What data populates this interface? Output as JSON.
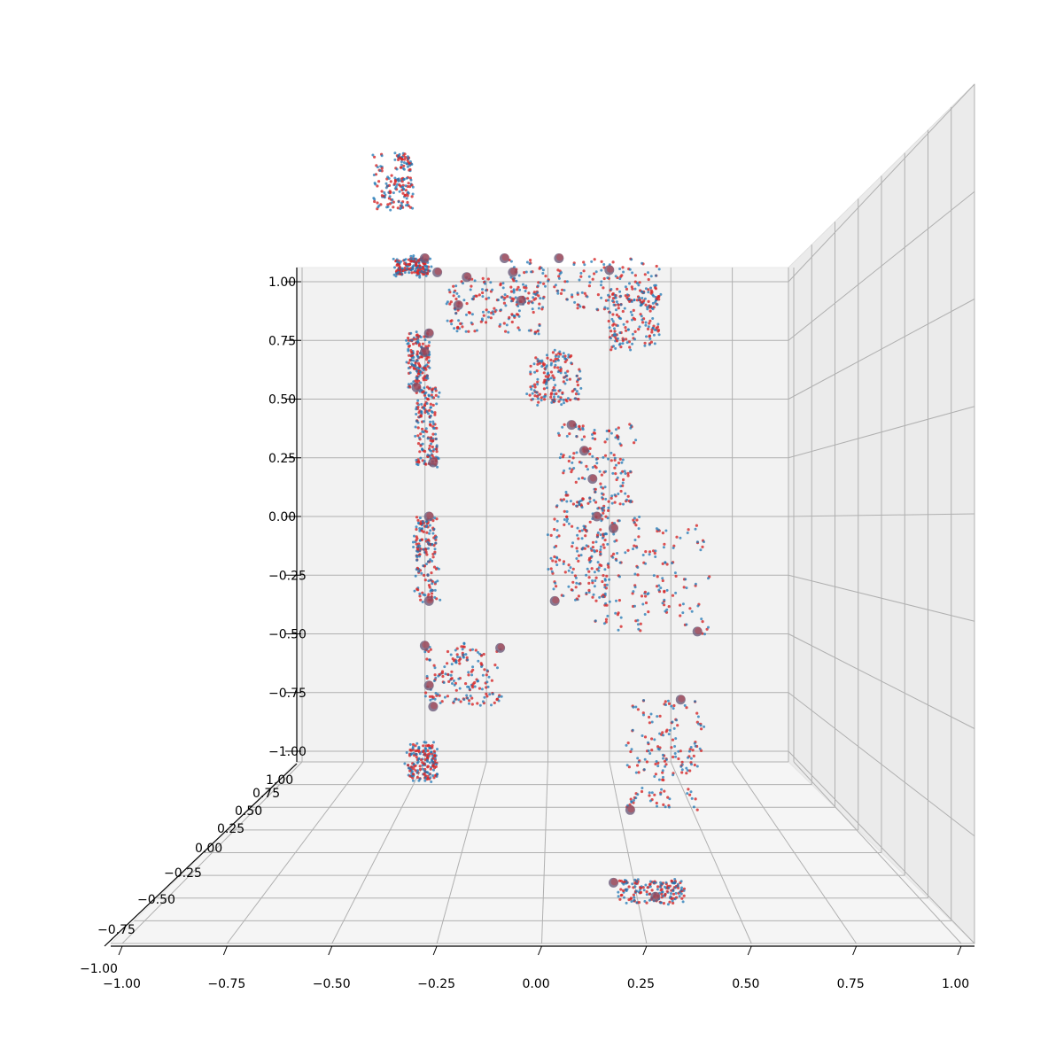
{
  "chart_data": {
    "type": "scatter",
    "title": "",
    "xlabel": "",
    "ylabel": "",
    "zlabel": "",
    "projection": "3d",
    "grid": true,
    "legend": "none",
    "xlim": [
      -1.0,
      1.0
    ],
    "ylim": [
      -1.0,
      1.0
    ],
    "zlim": [
      -1.0,
      1.0
    ],
    "x_ticks": [
      "−1.00",
      "−0.75",
      "−0.50",
      "−0.25",
      "0.00",
      "0.25",
      "0.50",
      "0.75",
      "1.00"
    ],
    "y_ticks": [
      "−1.00",
      "−0.75",
      "−0.50",
      "−0.25",
      "0.00",
      "0.25",
      "0.50",
      "0.75",
      "1.00"
    ],
    "z_ticks": [
      "−1.00",
      "−0.75",
      "−0.50",
      "−0.25",
      "0.00",
      "0.25",
      "0.50",
      "0.75",
      "1.00"
    ],
    "colors": {
      "series_a": "#d62728",
      "series_b": "#1f77b4",
      "joints": "#6b5b7b"
    },
    "series": [
      {
        "color": "#d62728",
        "marker_size": "small",
        "segments": [
          {
            "part": "head",
            "x": [
              -0.4,
              -0.31
            ],
            "z": [
              1.31,
              1.55
            ],
            "y": 0.0
          },
          {
            "part": "neck",
            "x": [
              -0.35,
              -0.27
            ],
            "z": [
              1.03,
              1.1
            ],
            "y": 0.0
          },
          {
            "part": "torso",
            "x": [
              -0.22,
              0.0
            ],
            "z": [
              0.78,
              1.02
            ],
            "y": 0.0
          },
          {
            "part": "upper-arm-left",
            "x": [
              -0.08,
              0.28
            ],
            "z": [
              0.88,
              1.1
            ],
            "y": 0.0
          },
          {
            "part": "forearm-left",
            "x": [
              0.15,
              0.28
            ],
            "z": [
              0.7,
              0.98
            ],
            "y": 0.0
          },
          {
            "part": "hand-left",
            "x": [
              -0.03,
              0.09
            ],
            "z": [
              0.48,
              0.7
            ],
            "y": 0.0
          },
          {
            "part": "upper-arm-right",
            "x": [
              -0.32,
              -0.27
            ],
            "z": [
              0.55,
              0.78
            ],
            "y": 0.0
          },
          {
            "part": "forearm-right",
            "x": [
              -0.3,
              -0.25
            ],
            "z": [
              0.22,
              0.55
            ],
            "y": 0.0
          },
          {
            "part": "pelvis",
            "x": [
              0.04,
              0.22
            ],
            "z": [
              0.05,
              0.4
            ],
            "y": 0.0
          },
          {
            "part": "thigh-left",
            "x": [
              0.02,
              0.16
            ],
            "z": [
              -0.36,
              0.05
            ],
            "y": 0.0
          },
          {
            "part": "thigh-right",
            "x": [
              0.12,
              0.4
            ],
            "z": [
              -0.5,
              0.0
            ],
            "y": 0.0
          },
          {
            "part": "shin-left",
            "x": [
              -0.3,
              -0.25
            ],
            "z": [
              -0.36,
              0.0
            ],
            "y": 0.0
          },
          {
            "part": "foot-left",
            "x": [
              -0.28,
              -0.1
            ],
            "z": [
              -0.8,
              -0.55
            ],
            "y": 0.0
          },
          {
            "part": "shin-right",
            "x": [
              0.2,
              0.38
            ],
            "z": [
              -1.25,
              -0.78
            ],
            "y": 0.0
          },
          {
            "part": "foot-right",
            "x": [
              0.18,
              0.34
            ],
            "z": [
              -1.65,
              -1.55
            ],
            "y": 0.0
          },
          {
            "part": "toe-right",
            "x": [
              -0.32,
              -0.25
            ],
            "z": [
              -1.12,
              -0.97
            ],
            "y": 0.0
          }
        ]
      },
      {
        "color": "#1f77b4",
        "marker_size": "small",
        "segments": "same as series_a, offset slightly"
      }
    ],
    "joints": [
      {
        "x": -0.28,
        "z": 1.1
      },
      {
        "x": -0.25,
        "z": 1.04
      },
      {
        "x": -0.09,
        "z": 1.1
      },
      {
        "x": -0.07,
        "z": 1.04
      },
      {
        "x": 0.04,
        "z": 1.1
      },
      {
        "x": 0.16,
        "z": 1.05
      },
      {
        "x": -0.18,
        "z": 1.02
      },
      {
        "x": -0.05,
        "z": 0.92
      },
      {
        "x": -0.2,
        "z": 0.9
      },
      {
        "x": -0.27,
        "z": 0.78
      },
      {
        "x": -0.28,
        "z": 0.7
      },
      {
        "x": -0.3,
        "z": 0.55
      },
      {
        "x": -0.26,
        "z": 0.23
      },
      {
        "x": -0.27,
        "z": 0.0
      },
      {
        "x": -0.27,
        "z": -0.36
      },
      {
        "x": -0.28,
        "z": -0.55
      },
      {
        "x": -0.27,
        "z": -0.72
      },
      {
        "x": -0.26,
        "z": -0.81
      },
      {
        "x": -0.1,
        "z": -0.56
      },
      {
        "x": 0.07,
        "z": 0.39
      },
      {
        "x": 0.1,
        "z": 0.28
      },
      {
        "x": 0.12,
        "z": 0.16
      },
      {
        "x": 0.13,
        "z": 0.0
      },
      {
        "x": 0.17,
        "z": -0.05
      },
      {
        "x": 0.03,
        "z": -0.36
      },
      {
        "x": 0.37,
        "z": -0.49
      },
      {
        "x": 0.33,
        "z": -0.78
      },
      {
        "x": 0.21,
        "z": -1.25
      },
      {
        "x": 0.17,
        "z": -1.56
      },
      {
        "x": 0.27,
        "z": -1.62
      }
    ]
  }
}
